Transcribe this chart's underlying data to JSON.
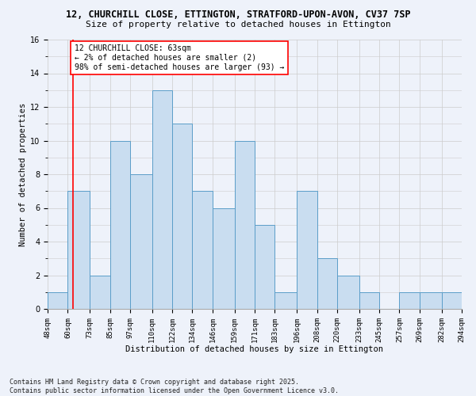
{
  "title_line1": "12, CHURCHILL CLOSE, ETTINGTON, STRATFORD-UPON-AVON, CV37 7SP",
  "title_line2": "Size of property relative to detached houses in Ettington",
  "xlabel": "Distribution of detached houses by size in Ettington",
  "ylabel": "Number of detached properties",
  "bins": [
    48,
    60,
    73,
    85,
    97,
    110,
    122,
    134,
    146,
    159,
    171,
    183,
    196,
    208,
    220,
    233,
    245,
    257,
    269,
    282,
    294
  ],
  "counts": [
    1,
    7,
    2,
    10,
    8,
    13,
    11,
    7,
    6,
    10,
    5,
    1,
    7,
    3,
    2,
    1,
    0,
    1,
    1,
    1
  ],
  "bar_facecolor": "#c9ddf0",
  "bar_edgecolor": "#5b9ec9",
  "grid_color": "#cccccc",
  "vline_x": 63,
  "vline_color": "red",
  "annotation_text": "12 CHURCHILL CLOSE: 63sqm\n← 2% of detached houses are smaller (2)\n98% of semi-detached houses are larger (93) →",
  "annotation_box_color": "white",
  "annotation_box_edgecolor": "red",
  "ylim": [
    0,
    16
  ],
  "yticks": [
    0,
    2,
    4,
    6,
    8,
    10,
    12,
    14,
    16
  ],
  "footnote": "Contains HM Land Registry data © Crown copyright and database right 2025.\nContains public sector information licensed under the Open Government Licence v3.0.",
  "bg_color": "#eef2fa",
  "title_fontsize": 8.5,
  "subtitle_fontsize": 8,
  "tick_fontsize": 6.5,
  "ylabel_fontsize": 7.5,
  "xlabel_fontsize": 7.5,
  "annotation_fontsize": 7,
  "footnote_fontsize": 6
}
